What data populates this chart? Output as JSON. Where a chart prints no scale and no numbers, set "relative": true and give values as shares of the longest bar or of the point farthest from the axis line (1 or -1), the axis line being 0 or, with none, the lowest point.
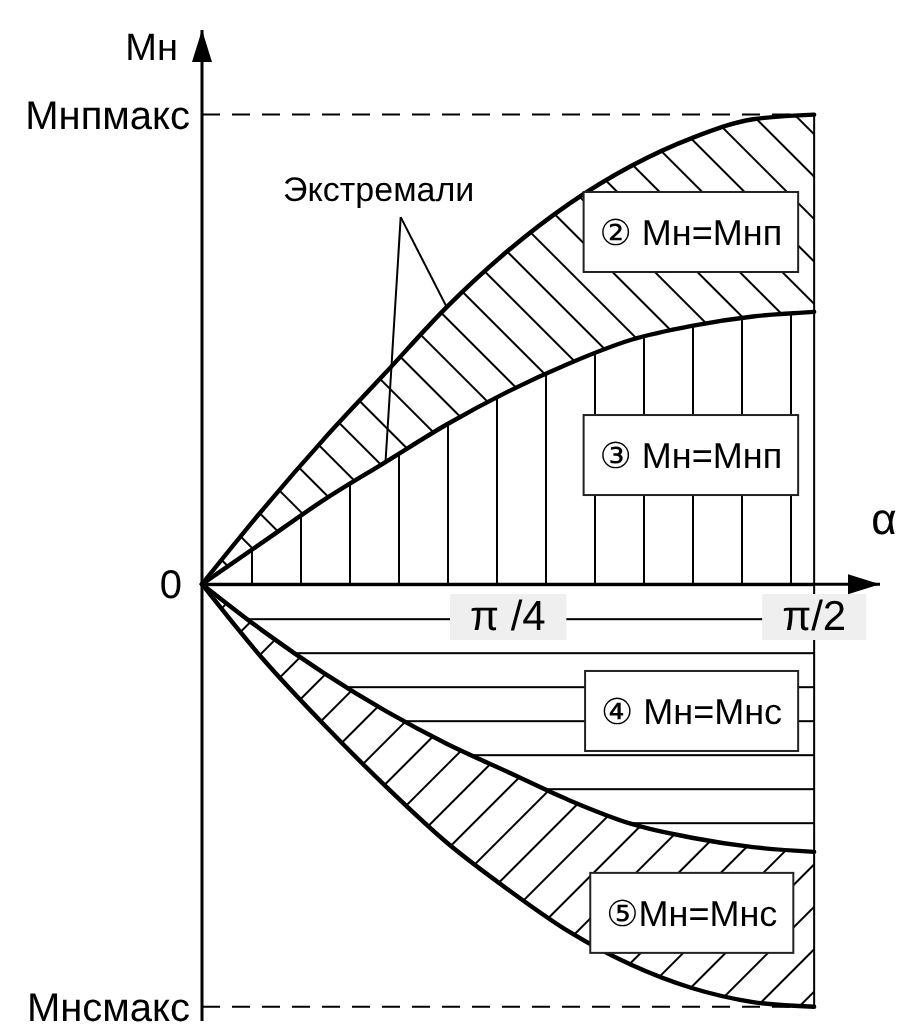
{
  "chart_data": {
    "type": "line",
    "relative": true,
    "xlabel": "α",
    "ylabel": "Мн",
    "x": [
      0,
      0.157,
      0.314,
      0.471,
      0.628,
      0.785,
      0.942,
      1.1,
      1.257,
      1.414,
      1.571
    ],
    "xlim": [
      0,
      1.74
    ],
    "xticks": [
      {
        "value": 0.785,
        "label": "π /4"
      },
      {
        "value": 1.571,
        "label": "π/2"
      }
    ],
    "series": [
      {
        "name": "② Мн=Мнп",
        "color": "#000000",
        "values": [
          0,
          0.16,
          0.31,
          0.45,
          0.59,
          0.71,
          0.81,
          0.89,
          0.95,
          0.99,
          1
        ],
        "lower": [
          0,
          0.09,
          0.18,
          0.26,
          0.34,
          0.41,
          0.47,
          0.52,
          0.55,
          0.57,
          0.58
        ],
        "upper": [
          0,
          0.16,
          0.31,
          0.45,
          0.59,
          0.71,
          0.81,
          0.89,
          0.95,
          0.99,
          1
        ]
      },
      {
        "name": "③ Мн=Мнп",
        "color": "#000000",
        "values": [
          0,
          0.09,
          0.18,
          0.26,
          0.34,
          0.41,
          0.47,
          0.52,
          0.55,
          0.57,
          0.58
        ],
        "lower": [
          0,
          0,
          0,
          0,
          0,
          0,
          0,
          0,
          0,
          0,
          0
        ],
        "upper": [
          0,
          0.09,
          0.18,
          0.26,
          0.34,
          0.41,
          0.47,
          0.52,
          0.55,
          0.57,
          0.58
        ]
      },
      {
        "name": "④ Мн=Мнс",
        "color": "#000000",
        "values": [
          0,
          -0.1,
          -0.19,
          -0.27,
          -0.34,
          -0.4,
          -0.46,
          -0.51,
          -0.54,
          -0.56,
          -0.57
        ],
        "lower": [
          0,
          -0.1,
          -0.19,
          -0.27,
          -0.34,
          -0.4,
          -0.46,
          -0.51,
          -0.54,
          -0.56,
          -0.57
        ],
        "upper": [
          0,
          0,
          0,
          0,
          0,
          0,
          0,
          0,
          0,
          0,
          0
        ]
      },
      {
        "name": "⑤Мн=Мнс",
        "color": "#000000",
        "values": [
          0,
          -0.16,
          -0.3,
          -0.43,
          -0.55,
          -0.65,
          -0.74,
          -0.81,
          -0.86,
          -0.89,
          -0.9
        ],
        "lower": [
          0,
          -0.16,
          -0.3,
          -0.43,
          -0.55,
          -0.65,
          -0.74,
          -0.81,
          -0.86,
          -0.89,
          -0.9
        ],
        "upper": [
          0,
          -0.1,
          -0.19,
          -0.27,
          -0.34,
          -0.4,
          -0.46,
          -0.51,
          -0.54,
          -0.56,
          -0.57
        ]
      }
    ],
    "ref_lines": [
      {
        "axis": "y",
        "value": 1,
        "label": "Мнпмакс",
        "line_style": "dashed"
      },
      {
        "axis": "y",
        "value": -0.9,
        "label": "Мнсмакс",
        "line_style": "dashed"
      }
    ],
    "annotations": [
      {
        "text": "Экстремали",
        "x": 0.628,
        "y": 0.59
      },
      {
        "text": "0",
        "x": 0,
        "y": 0
      }
    ]
  }
}
